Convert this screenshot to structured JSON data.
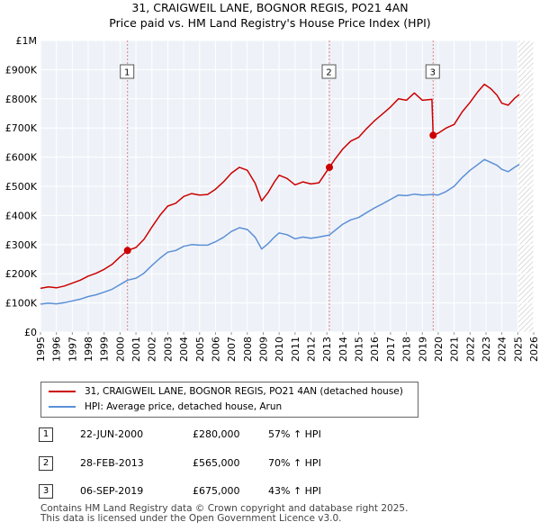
{
  "header": {
    "title": "31, CRAIGWEIL LANE, BOGNOR REGIS, PO21 4AN",
    "subtitle": "Price paid vs. HM Land Registry's House Price Index (HPI)"
  },
  "legend": {
    "items": [
      {
        "label": "31, CRAIGWEIL LANE, BOGNOR REGIS, PO21 4AN (detached house)",
        "color": "#cc0000"
      },
      {
        "label": "HPI: Average price, detached house, Arun",
        "color": "#5b8fd6"
      }
    ]
  },
  "sales": [
    {
      "num": "1",
      "date": "22-JUN-2000",
      "price": "£280,000",
      "hpi": "57% ↑ HPI"
    },
    {
      "num": "2",
      "date": "28-FEB-2013",
      "price": "£565,000",
      "hpi": "70% ↑ HPI"
    },
    {
      "num": "3",
      "date": "06-SEP-2019",
      "price": "£675,000",
      "hpi": "43% ↑ HPI"
    }
  ],
  "footer": {
    "line1": "Contains HM Land Registry data © Crown copyright and database right 2025.",
    "line2": "This data is licensed under the Open Government Licence v3.0."
  },
  "chart_data": {
    "type": "line",
    "title": "31, CRAIGWEIL LANE, BOGNOR REGIS, PO21 4AN",
    "subtitle": "Price paid vs. HM Land Registry's House Price Index (HPI)",
    "xlabel": "",
    "ylabel": "",
    "xlim": [
      1995,
      2026
    ],
    "ylim": [
      0,
      1000000
    ],
    "x_ticks": [
      "1995",
      "1996",
      "1997",
      "1998",
      "1999",
      "2000",
      "2001",
      "2002",
      "2003",
      "2004",
      "2005",
      "2006",
      "2007",
      "2008",
      "2009",
      "2010",
      "2011",
      "2012",
      "2013",
      "2014",
      "2015",
      "2016",
      "2017",
      "2018",
      "2019",
      "2020",
      "2021",
      "2022",
      "2023",
      "2024",
      "2025",
      "2026"
    ],
    "y_ticks": [
      {
        "value": 0,
        "label": "£0"
      },
      {
        "value": 100000,
        "label": "£100K"
      },
      {
        "value": 200000,
        "label": "£200K"
      },
      {
        "value": 300000,
        "label": "£300K"
      },
      {
        "value": 400000,
        "label": "£400K"
      },
      {
        "value": 500000,
        "label": "£500K"
      },
      {
        "value": 600000,
        "label": "£600K"
      },
      {
        "value": 700000,
        "label": "£700K"
      },
      {
        "value": 800000,
        "label": "£800K"
      },
      {
        "value": 900000,
        "label": "£900K"
      },
      {
        "value": 1000000,
        "label": "£1M"
      }
    ],
    "grid": true,
    "shaded_region": {
      "x_start": 2025.0,
      "x_end": 2026,
      "note": "forecast hatched area"
    },
    "series": [
      {
        "name": "31, CRAIGWEIL LANE, BOGNOR REGIS, PO21 4AN (detached house)",
        "color": "#cc0000",
        "points": [
          [
            1995.0,
            150000
          ],
          [
            1995.5,
            155000
          ],
          [
            1996.0,
            152000
          ],
          [
            1996.5,
            158000
          ],
          [
            1997.0,
            168000
          ],
          [
            1997.5,
            178000
          ],
          [
            1998.0,
            192000
          ],
          [
            1998.5,
            202000
          ],
          [
            1999.0,
            215000
          ],
          [
            1999.5,
            232000
          ],
          [
            2000.0,
            258000
          ],
          [
            2000.47,
            280000
          ],
          [
            2001.0,
            290000
          ],
          [
            2001.5,
            318000
          ],
          [
            2002.0,
            360000
          ],
          [
            2002.5,
            400000
          ],
          [
            2003.0,
            432000
          ],
          [
            2003.5,
            442000
          ],
          [
            2004.0,
            465000
          ],
          [
            2004.5,
            475000
          ],
          [
            2005.0,
            470000
          ],
          [
            2005.5,
            472000
          ],
          [
            2006.0,
            490000
          ],
          [
            2006.5,
            515000
          ],
          [
            2007.0,
            545000
          ],
          [
            2007.5,
            565000
          ],
          [
            2008.0,
            555000
          ],
          [
            2008.5,
            510000
          ],
          [
            2008.9,
            450000
          ],
          [
            2009.3,
            478000
          ],
          [
            2009.7,
            515000
          ],
          [
            2010.0,
            538000
          ],
          [
            2010.5,
            527000
          ],
          [
            2011.0,
            505000
          ],
          [
            2011.5,
            515000
          ],
          [
            2012.0,
            508000
          ],
          [
            2012.5,
            512000
          ],
          [
            2013.16,
            565000
          ],
          [
            2013.5,
            592000
          ],
          [
            2014.0,
            628000
          ],
          [
            2014.5,
            655000
          ],
          [
            2015.0,
            668000
          ],
          [
            2015.5,
            698000
          ],
          [
            2016.0,
            725000
          ],
          [
            2016.5,
            748000
          ],
          [
            2017.0,
            772000
          ],
          [
            2017.5,
            800000
          ],
          [
            2018.0,
            795000
          ],
          [
            2018.5,
            820000
          ],
          [
            2019.0,
            795000
          ],
          [
            2019.6,
            798000
          ],
          [
            2019.68,
            675000
          ],
          [
            2020.0,
            682000
          ],
          [
            2020.5,
            700000
          ],
          [
            2021.0,
            712000
          ],
          [
            2021.5,
            755000
          ],
          [
            2022.0,
            788000
          ],
          [
            2022.5,
            825000
          ],
          [
            2022.9,
            850000
          ],
          [
            2023.3,
            835000
          ],
          [
            2023.7,
            812000
          ],
          [
            2024.0,
            785000
          ],
          [
            2024.4,
            778000
          ],
          [
            2024.8,
            802000
          ],
          [
            2025.1,
            815000
          ]
        ]
      },
      {
        "name": "HPI: Average price, detached house, Arun",
        "color": "#5b8fd6",
        "points": [
          [
            1995.0,
            96000
          ],
          [
            1995.5,
            99000
          ],
          [
            1996.0,
            97000
          ],
          [
            1996.5,
            101000
          ],
          [
            1997.0,
            107000
          ],
          [
            1997.5,
            113000
          ],
          [
            1998.0,
            122000
          ],
          [
            1998.5,
            128000
          ],
          [
            1999.0,
            137000
          ],
          [
            1999.5,
            147000
          ],
          [
            2000.0,
            163000
          ],
          [
            2000.47,
            178000
          ],
          [
            2001.0,
            185000
          ],
          [
            2001.5,
            202000
          ],
          [
            2002.0,
            228000
          ],
          [
            2002.5,
            253000
          ],
          [
            2003.0,
            274000
          ],
          [
            2003.5,
            280000
          ],
          [
            2004.0,
            294000
          ],
          [
            2004.5,
            300000
          ],
          [
            2005.0,
            298000
          ],
          [
            2005.5,
            298000
          ],
          [
            2006.0,
            310000
          ],
          [
            2006.5,
            325000
          ],
          [
            2007.0,
            345000
          ],
          [
            2007.5,
            358000
          ],
          [
            2008.0,
            352000
          ],
          [
            2008.5,
            325000
          ],
          [
            2008.9,
            285000
          ],
          [
            2009.3,
            303000
          ],
          [
            2009.7,
            326000
          ],
          [
            2010.0,
            340000
          ],
          [
            2010.5,
            334000
          ],
          [
            2011.0,
            320000
          ],
          [
            2011.5,
            326000
          ],
          [
            2012.0,
            322000
          ],
          [
            2012.5,
            326000
          ],
          [
            2013.16,
            333000
          ],
          [
            2013.5,
            348000
          ],
          [
            2014.0,
            370000
          ],
          [
            2014.5,
            385000
          ],
          [
            2015.0,
            393000
          ],
          [
            2015.5,
            410000
          ],
          [
            2016.0,
            426000
          ],
          [
            2016.5,
            440000
          ],
          [
            2017.0,
            455000
          ],
          [
            2017.5,
            470000
          ],
          [
            2018.0,
            468000
          ],
          [
            2018.5,
            473000
          ],
          [
            2019.0,
            470000
          ],
          [
            2019.68,
            472000
          ],
          [
            2020.0,
            470000
          ],
          [
            2020.5,
            482000
          ],
          [
            2021.0,
            500000
          ],
          [
            2021.5,
            530000
          ],
          [
            2022.0,
            555000
          ],
          [
            2022.5,
            575000
          ],
          [
            2022.9,
            592000
          ],
          [
            2023.3,
            582000
          ],
          [
            2023.7,
            572000
          ],
          [
            2024.0,
            558000
          ],
          [
            2024.4,
            550000
          ],
          [
            2024.8,
            565000
          ],
          [
            2025.1,
            575000
          ]
        ]
      }
    ],
    "sale_markers": [
      {
        "label": "1",
        "x": 2000.47,
        "price": 280000
      },
      {
        "label": "2",
        "x": 2013.16,
        "price": 565000
      },
      {
        "label": "3",
        "x": 2019.68,
        "price": 675000
      }
    ]
  }
}
